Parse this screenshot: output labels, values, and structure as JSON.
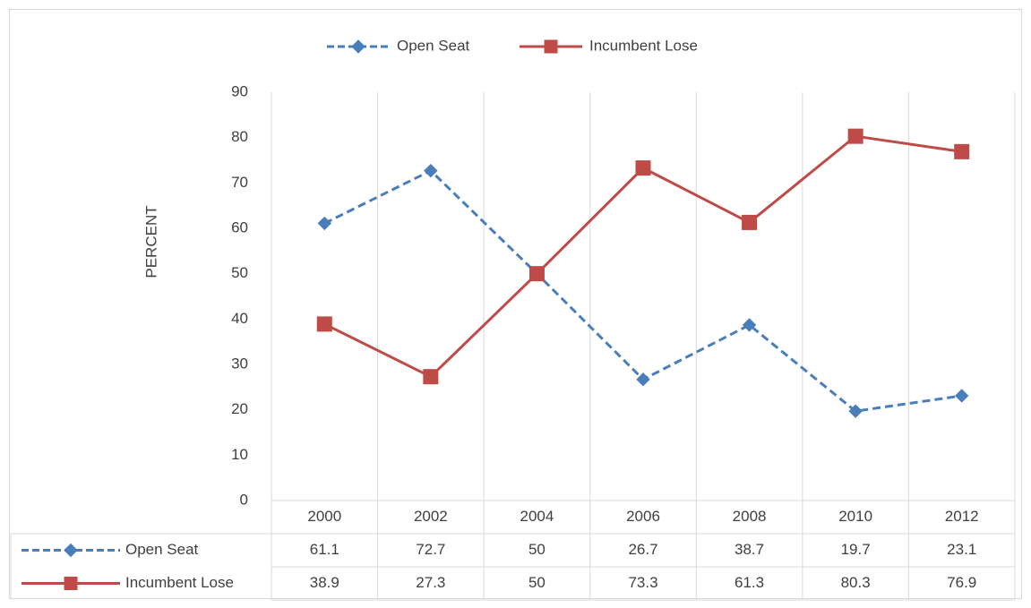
{
  "chart_data": {
    "type": "line",
    "y_label": "PERCENT",
    "categories": [
      "2000",
      "2002",
      "2004",
      "2006",
      "2008",
      "2010",
      "2012"
    ],
    "series": [
      {
        "name": "Open Seat",
        "color": "#4a7ebb",
        "dashed": true,
        "marker": "diamond",
        "values": [
          61.1,
          72.7,
          50,
          26.7,
          38.7,
          19.7,
          23.1
        ]
      },
      {
        "name": "Incumbent Lose",
        "color": "#be4b48",
        "dashed": false,
        "marker": "square",
        "values": [
          38.9,
          27.3,
          50,
          73.3,
          61.3,
          80.3,
          76.9
        ]
      }
    ],
    "ylim": [
      0,
      90
    ],
    "yticks": [
      0,
      10,
      20,
      30,
      40,
      50,
      60,
      70,
      80,
      90
    ],
    "legend": "top",
    "data_table": true
  }
}
